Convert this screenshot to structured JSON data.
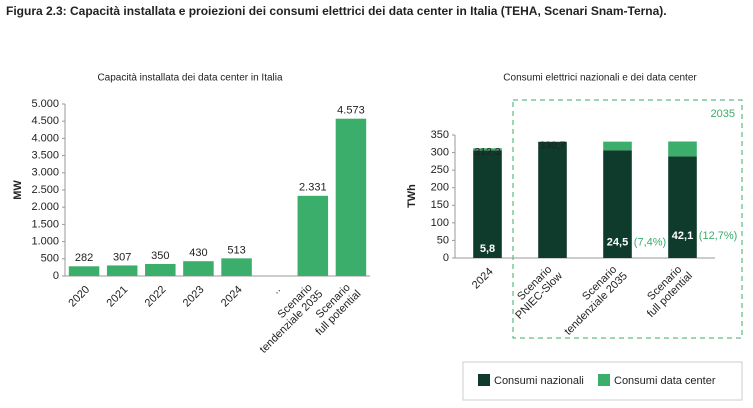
{
  "header": {
    "title": "Figura 2.3: Capacità installata e proiezioni dei consumi elettrici dei data center in Italia (TEHA, Scenari Snam-Terna)."
  },
  "chart_data": [
    {
      "type": "bar",
      "title": "Capacità installata dei data center in Italia",
      "y_label": "MW",
      "categories": [
        "2020",
        "2021",
        "2022",
        "2023",
        "2024",
        "..",
        "Scenario tendenziale 2035",
        "Scenario full potential"
      ],
      "values": [
        282,
        307,
        350,
        430,
        513,
        null,
        2331,
        4573
      ],
      "value_labels": [
        "282",
        "307",
        "350",
        "430",
        "513",
        null,
        "2.331",
        "4.573"
      ],
      "color": "#3aae6a",
      "ylim": [
        0,
        5000
      ],
      "yticks": [
        0,
        500,
        {
          "value": 1000,
          "label": "1.000"
        },
        {
          "value": 1500,
          "label": "1.500"
        },
        {
          "value": 2000,
          "label": "2.000"
        },
        {
          "value": 2500,
          "label": "2.500"
        },
        {
          "value": 3000,
          "label": "3.000"
        },
        {
          "value": 3500,
          "label": "3.500"
        },
        {
          "value": 4000,
          "label": "4.000"
        },
        {
          "value": 4500,
          "label": "4.500"
        },
        {
          "value": 5000,
          "label": "5.000"
        }
      ]
    },
    {
      "type": "stacked_bar",
      "title": "Consumi elettrici nazionali e dei data center",
      "y_label": "TWh",
      "categories": [
        "2024",
        "Scenario PNIEC-Slow",
        "Scenario tendenziale 2035",
        "Scenario full potential"
      ],
      "series": [
        {
          "name": "Consumi nazionali",
          "color": "#0e3b2b",
          "values": [
            306.5,
            330.7,
            306.6,
            289.4
          ]
        },
        {
          "name": "Consumi data center",
          "color": "#3aae6a",
          "values": [
            5.8,
            null,
            24.5,
            42.1
          ],
          "value_labels": [
            "5,8",
            null,
            "24,5",
            "42,1"
          ],
          "share_labels": [
            null,
            null,
            "(7,4%)",
            "(12,7%)"
          ]
        }
      ],
      "totals": [
        312.3,
        330.7,
        null,
        null
      ],
      "total_labels": [
        "312,3",
        "330,7",
        null,
        null
      ],
      "annotation": "2035",
      "ylim": [
        0,
        350
      ],
      "yticks": [
        0,
        50,
        100,
        150,
        200,
        250,
        300,
        350
      ]
    }
  ]
}
